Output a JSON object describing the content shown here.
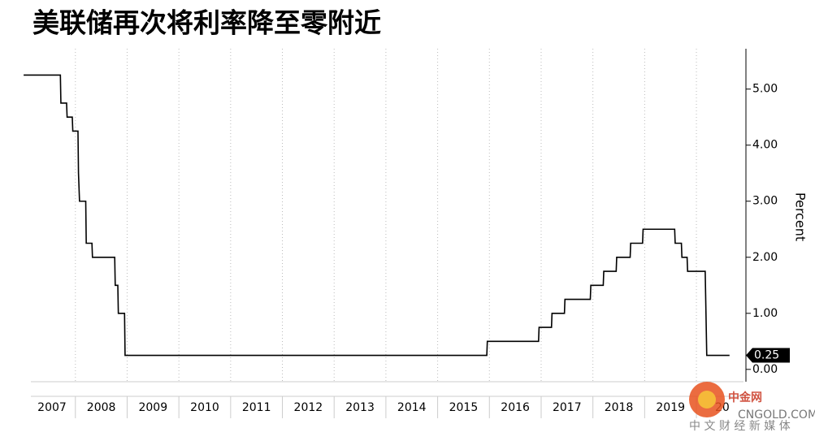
{
  "chart_data": {
    "type": "line",
    "title": "美联储再次将利率降至零附近",
    "y_label": "Percent",
    "x": [
      2007.0,
      2007.71,
      2007.72,
      2007.83,
      2007.84,
      2007.94,
      2007.95,
      2008.05,
      2008.06,
      2008.08,
      2008.2,
      2008.21,
      2008.32,
      2008.33,
      2008.76,
      2008.77,
      2008.82,
      2008.83,
      2008.95,
      2008.96,
      2015.95,
      2015.96,
      2016.95,
      2016.96,
      2017.2,
      2017.21,
      2017.45,
      2017.46,
      2017.95,
      2017.96,
      2018.2,
      2018.21,
      2018.45,
      2018.46,
      2018.72,
      2018.73,
      2018.96,
      2018.97,
      2019.58,
      2019.59,
      2019.71,
      2019.72,
      2019.82,
      2019.83,
      2020.17,
      2020.2,
      2020.64
    ],
    "values": [
      5.25,
      5.25,
      4.75,
      4.75,
      4.5,
      4.5,
      4.25,
      4.25,
      3.5,
      3.0,
      3.0,
      2.25,
      2.25,
      2.0,
      2.0,
      1.5,
      1.5,
      1.0,
      1.0,
      0.25,
      0.25,
      0.5,
      0.5,
      0.75,
      0.75,
      1.0,
      1.0,
      1.25,
      1.25,
      1.5,
      1.5,
      1.75,
      1.75,
      2.0,
      2.0,
      2.25,
      2.25,
      2.5,
      2.5,
      2.25,
      2.25,
      2.0,
      2.0,
      1.75,
      1.75,
      0.25,
      0.25
    ],
    "color": "#000000",
    "last_value": 0.25,
    "xlim": [
      2007.14,
      2020.91
    ],
    "xticks": [
      2008,
      2009,
      2010,
      2011,
      2012,
      2013,
      2014,
      2015,
      2016,
      2017,
      2018,
      2019,
      2020
    ],
    "year_labels": [
      "2007",
      "2008",
      "2009",
      "2010",
      "2011",
      "2012",
      "2013",
      "2014",
      "2015",
      "2016",
      "2017",
      "2018",
      "2019",
      "20"
    ],
    "ylim": [
      -0.22,
      5.72
    ],
    "yticks": [
      {
        "value": 0,
        "label": "0.00"
      },
      {
        "value": 1,
        "label": "1.00"
      },
      {
        "value": 2,
        "label": "2.00"
      },
      {
        "value": 3,
        "label": "3.00"
      },
      {
        "value": 4,
        "label": "4.00"
      },
      {
        "value": 5,
        "label": "5.00"
      }
    ],
    "grid": "x"
  },
  "watermark": {
    "logo": "中金网",
    "domain": "CNGOLD.COM.CN",
    "tagline": "中 文 财 经 新 媒 体"
  }
}
